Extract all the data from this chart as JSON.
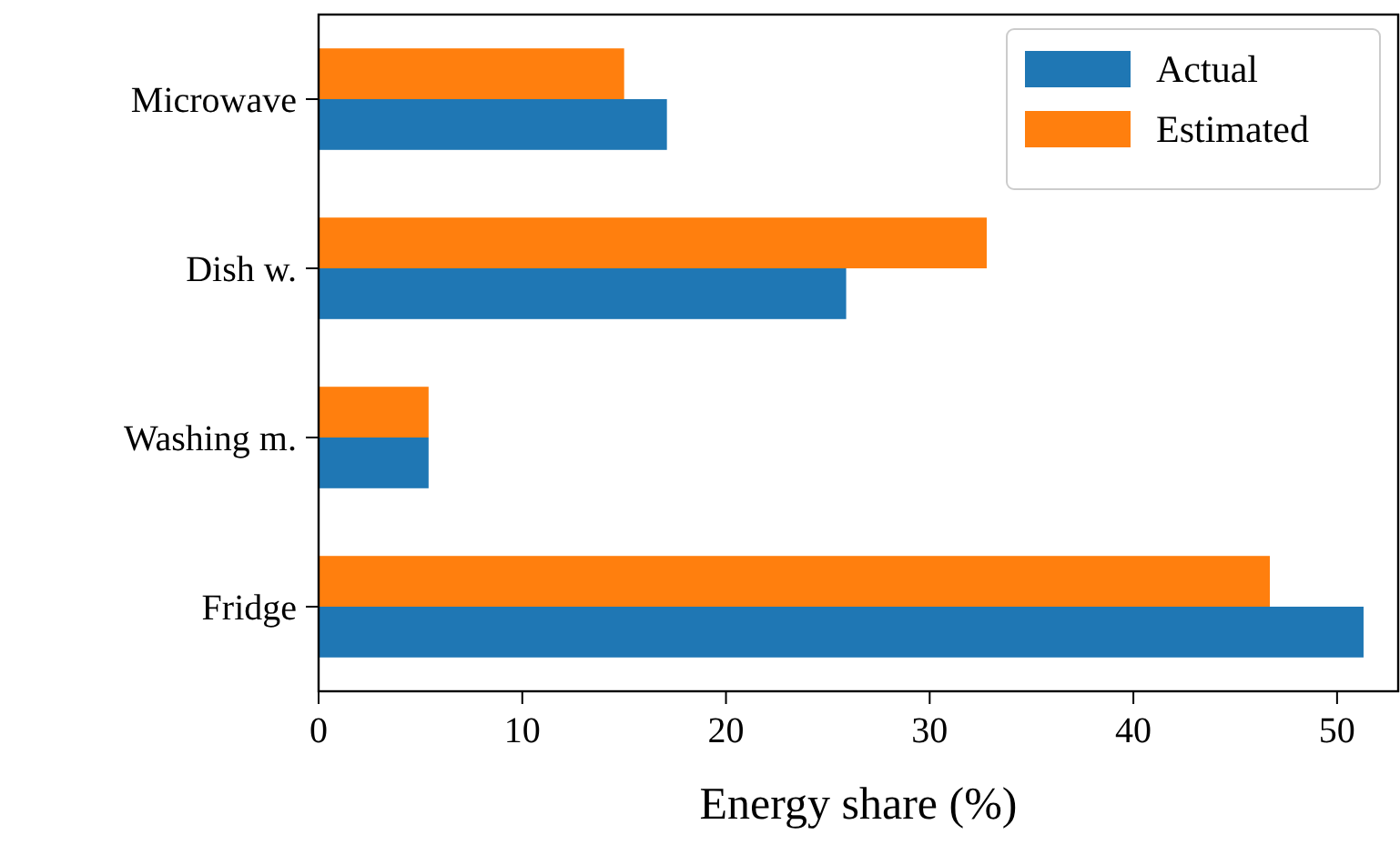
{
  "chart_data": {
    "type": "bar",
    "orientation": "horizontal",
    "xlabel": "Energy share (%)",
    "categories": [
      "Microwave",
      "Dish w.",
      "Washing m.",
      "Fridge"
    ],
    "series": [
      {
        "name": "Actual",
        "color": "#1f77b4",
        "values": [
          17.1,
          25.9,
          5.4,
          51.3
        ]
      },
      {
        "name": "Estimated",
        "color": "#ff7f0e",
        "values": [
          15.0,
          32.8,
          5.4,
          46.7
        ]
      }
    ],
    "xlim": [
      0,
      53
    ],
    "xticks": [
      0,
      10,
      20,
      30,
      40,
      50
    ],
    "grid": false,
    "legend": "top right"
  }
}
